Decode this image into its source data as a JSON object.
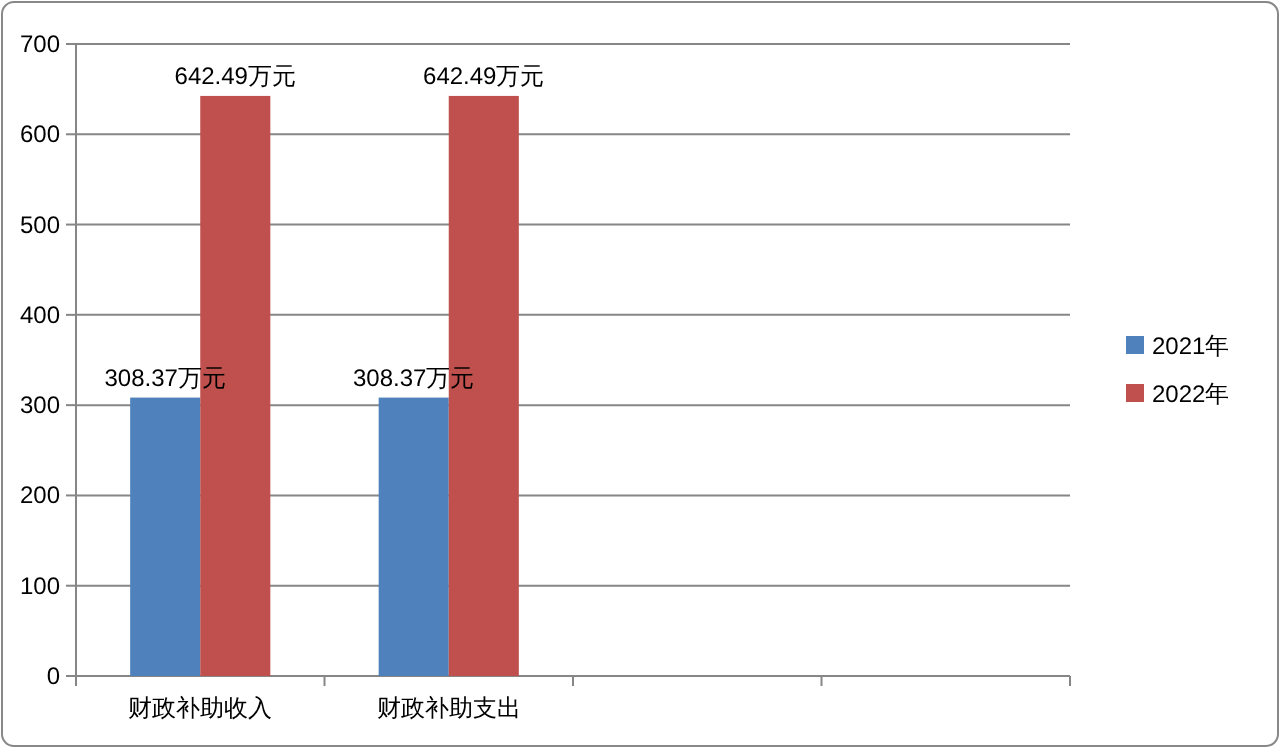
{
  "chart_data": {
    "type": "bar",
    "categories": [
      "财政补助收入",
      "财政补助支出",
      null,
      null
    ],
    "series": [
      {
        "name": "2021年",
        "color": "#4f81bd",
        "values": [
          308.37,
          308.37,
          null,
          null
        ],
        "value_labels": [
          "308.37万元",
          "308.37万元",
          null,
          null
        ]
      },
      {
        "name": "2022年",
        "color": "#c0504d",
        "values": [
          642.49,
          642.49,
          null,
          null
        ],
        "value_labels": [
          "642.49万元",
          "642.49万元",
          null,
          null
        ]
      }
    ],
    "ylim": [
      0,
      700
    ],
    "yticks": [
      0,
      100,
      200,
      300,
      400,
      500,
      600,
      700
    ],
    "grid": "y",
    "legend": "right"
  }
}
